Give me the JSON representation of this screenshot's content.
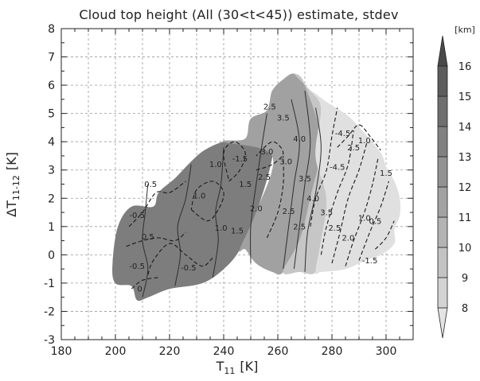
{
  "chart_data": {
    "type": "heatmap",
    "title": "Cloud top height (All (30<t<45)) estimate, stdev",
    "xlabel": "T",
    "xlabel_sub": "11",
    "xlabel_unit": "[K]",
    "ylabel": "ΔT",
    "ylabel_sub": "11-12",
    "ylabel_unit": "[K]",
    "xlim": [
      180,
      310
    ],
    "ylim": [
      -3,
      8
    ],
    "xticks": [
      180,
      200,
      220,
      240,
      260,
      280,
      300
    ],
    "yticks": [
      -3,
      -2,
      -1,
      0,
      1,
      2,
      3,
      4,
      5,
      6,
      7,
      8
    ],
    "grid": true,
    "colorbar": {
      "unit": "[km]",
      "levels": [
        8,
        9,
        10,
        11,
        12,
        13,
        14,
        15,
        16
      ],
      "colors": [
        "#e3e3e3",
        "#d3d3d3",
        "#c3c3c3",
        "#b3b3b3",
        "#a2a2a2",
        "#929292",
        "#818181",
        "#6f6f6f",
        "#5c5c5c",
        "#4a4a4a"
      ]
    },
    "fill_regions": [
      {
        "level": 14,
        "color": "#7d7d7d",
        "points": [
          [
            199,
            -0.3
          ],
          [
            201,
            1.0
          ],
          [
            206,
            1.7
          ],
          [
            214,
            1.7
          ],
          [
            216,
            2.2
          ],
          [
            222,
            2.7
          ],
          [
            228,
            3.3
          ],
          [
            233,
            3.7
          ],
          [
            240,
            4.0
          ],
          [
            248,
            4.1
          ],
          [
            250,
            4.8
          ],
          [
            256,
            5.1
          ],
          [
            258,
            5.8
          ],
          [
            260,
            5.6
          ],
          [
            258,
            3.5
          ],
          [
            252,
            1.5
          ],
          [
            246,
            0.2
          ],
          [
            240,
            -0.5
          ],
          [
            232,
            -1.0
          ],
          [
            220,
            -1.2
          ],
          [
            212,
            -1.5
          ],
          [
            208,
            -1.6
          ],
          [
            206,
            -1.1
          ],
          [
            200,
            -1.0
          ]
        ]
      },
      {
        "level": 12,
        "color": "#a1a1a1",
        "points": [
          [
            240,
            4.0
          ],
          [
            248,
            4.1
          ],
          [
            250,
            4.8
          ],
          [
            256,
            5.1
          ],
          [
            258,
            5.8
          ],
          [
            262,
            6.2
          ],
          [
            266,
            6.4
          ],
          [
            270,
            6.0
          ],
          [
            276,
            4.0
          ],
          [
            272,
            2.0
          ],
          [
            268,
            0.5
          ],
          [
            262,
            -0.6
          ],
          [
            258,
            -0.6
          ],
          [
            252,
            -0.3
          ],
          [
            248,
            0.2
          ],
          [
            246,
            0.2
          ],
          [
            252,
            1.5
          ],
          [
            258,
            3.5
          ]
        ]
      },
      {
        "level": 10,
        "color": "#c6c6c6",
        "points": [
          [
            266,
            6.4
          ],
          [
            272,
            5.8
          ],
          [
            276,
            5.2
          ],
          [
            274,
            3.5
          ],
          [
            278,
            2.0
          ],
          [
            276,
            0.5
          ],
          [
            274,
            -0.6
          ],
          [
            268,
            -0.6
          ],
          [
            262,
            -0.6
          ],
          [
            268,
            0.5
          ],
          [
            272,
            2.0
          ],
          [
            276,
            4.0
          ],
          [
            270,
            6.0
          ]
        ]
      },
      {
        "level": 8,
        "color": "#e0e0e0",
        "points": [
          [
            272,
            5.8
          ],
          [
            278,
            5.4
          ],
          [
            286,
            4.9
          ],
          [
            292,
            4.3
          ],
          [
            298,
            3.6
          ],
          [
            300,
            3.1
          ],
          [
            303,
            2.6
          ],
          [
            305,
            2.0
          ],
          [
            305,
            1.4
          ],
          [
            303,
            0.9
          ],
          [
            303,
            0.4
          ],
          [
            298,
            0.0
          ],
          [
            292,
            -0.2
          ],
          [
            285,
            -0.5
          ],
          [
            276,
            -0.6
          ],
          [
            274,
            -0.6
          ],
          [
            276,
            0.5
          ],
          [
            278,
            2.0
          ],
          [
            274,
            3.5
          ],
          [
            276,
            5.2
          ]
        ]
      }
    ],
    "contours_solid": [
      [
        [
          210,
          -1.5
        ],
        [
          212,
          -0.5
        ],
        [
          210,
          0.5
        ],
        [
          211,
          1.5
        ],
        [
          212,
          2.5
        ]
      ],
      [
        [
          222,
          -1.1
        ],
        [
          224,
          0.0
        ],
        [
          223,
          1.0
        ],
        [
          226,
          2.0
        ],
        [
          228,
          3.2
        ]
      ],
      [
        [
          236,
          -0.8
        ],
        [
          238,
          0.5
        ],
        [
          237,
          1.5
        ],
        [
          239,
          2.5
        ],
        [
          240,
          3.8
        ]
      ],
      [
        [
          250,
          -0.3
        ],
        [
          250,
          1.0
        ],
        [
          252,
          2.5
        ],
        [
          254,
          3.8
        ],
        [
          256,
          5.0
        ]
      ],
      [
        [
          262,
          -0.5
        ],
        [
          264,
          1.0
        ],
        [
          266,
          2.5
        ],
        [
          268,
          4.0
        ],
        [
          265,
          5.5
        ]
      ],
      [
        [
          266,
          -0.5
        ],
        [
          268,
          1.0
        ],
        [
          270,
          2.5
        ],
        [
          272,
          4.0
        ],
        [
          270,
          5.8
        ]
      ],
      [
        [
          270,
          -0.6
        ],
        [
          271,
          0.8
        ],
        [
          274,
          2.2
        ],
        [
          276,
          3.8
        ],
        [
          274,
          5.2
        ]
      ]
    ],
    "contours_dashed": [
      [
        [
          205,
          1.0
        ],
        [
          210,
          1.5
        ],
        [
          215,
          2.2
        ],
        [
          220,
          2.2
        ],
        [
          226,
          2.6
        ]
      ],
      [
        [
          204,
          0.3
        ],
        [
          210,
          0.5
        ],
        [
          216,
          0.6
        ],
        [
          222,
          0.5
        ],
        [
          226,
          0.8
        ]
      ],
      [
        [
          212,
          -0.7
        ],
        [
          214,
          -0.2
        ],
        [
          220,
          0.4
        ],
        [
          226,
          0.0
        ],
        [
          232,
          -0.4
        ],
        [
          236,
          -0.1
        ]
      ],
      [
        [
          206,
          -1.2
        ],
        [
          210,
          -0.9
        ],
        [
          216,
          -0.8
        ]
      ],
      [
        [
          228,
          1.6
        ],
        [
          234,
          1.2
        ],
        [
          238,
          1.6
        ],
        [
          240,
          2.2
        ],
        [
          236,
          2.6
        ],
        [
          230,
          2.3
        ],
        [
          228,
          1.6
        ]
      ],
      [
        [
          242,
          2.6
        ],
        [
          246,
          3.0
        ],
        [
          248,
          3.6
        ],
        [
          244,
          4.0
        ],
        [
          240,
          3.6
        ],
        [
          242,
          2.6
        ]
      ],
      [
        [
          252,
          3.0
        ],
        [
          258,
          3.2
        ],
        [
          262,
          3.6
        ],
        [
          258,
          4.0
        ],
        [
          252,
          3.5
        ]
      ],
      [
        [
          256,
          0.6
        ],
        [
          260,
          1.5
        ],
        [
          262,
          2.5
        ],
        [
          262,
          3.5
        ]
      ],
      [
        [
          272,
          1.0
        ],
        [
          274,
          2.0
        ],
        [
          278,
          3.0
        ],
        [
          280,
          4.2
        ],
        [
          282,
          5.2
        ]
      ],
      [
        [
          276,
          0.0
        ],
        [
          278,
          1.0
        ],
        [
          282,
          2.2
        ],
        [
          286,
          3.2
        ],
        [
          288,
          4.4
        ]
      ],
      [
        [
          280,
          -0.3
        ],
        [
          283,
          0.8
        ],
        [
          286,
          2.0
        ],
        [
          290,
          3.0
        ],
        [
          293,
          4.0
        ]
      ],
      [
        [
          285,
          -0.4
        ],
        [
          288,
          0.5
        ],
        [
          292,
          1.5
        ],
        [
          295,
          2.5
        ],
        [
          297,
          3.4
        ]
      ],
      [
        [
          290,
          -0.2
        ],
        [
          294,
          0.8
        ],
        [
          298,
          1.7
        ],
        [
          301,
          2.6
        ]
      ],
      [
        [
          282,
          3.8
        ],
        [
          286,
          4.2
        ],
        [
          290,
          4.6
        ],
        [
          294,
          4.2
        ],
        [
          298,
          3.7
        ]
      ],
      [
        [
          296,
          0.2
        ],
        [
          300,
          0.6
        ],
        [
          303,
          1.2
        ]
      ]
    ],
    "contour_labels": [
      {
        "x": 213,
        "y": 2.4,
        "text": "0.5"
      },
      {
        "x": 208,
        "y": 1.3,
        "text": "-0.5"
      },
      {
        "x": 212,
        "y": 0.55,
        "text": "0.5"
      },
      {
        "x": 208,
        "y": -0.5,
        "text": "-0.5"
      },
      {
        "x": 227,
        "y": -0.55,
        "text": "-0.5"
      },
      {
        "x": 237,
        "y": 3.1,
        "text": "1.0"
      },
      {
        "x": 231,
        "y": 2.0,
        "text": "1.0"
      },
      {
        "x": 239,
        "y": 0.85,
        "text": "1.0"
      },
      {
        "x": 245,
        "y": 0.75,
        "text": "1.5"
      },
      {
        "x": 248,
        "y": 2.4,
        "text": "1.5"
      },
      {
        "x": 246,
        "y": 3.3,
        "text": "-1.5"
      },
      {
        "x": 252,
        "y": 1.55,
        "text": "2.0"
      },
      {
        "x": 255,
        "y": 2.65,
        "text": "2.5"
      },
      {
        "x": 256,
        "y": 3.55,
        "text": "3.0"
      },
      {
        "x": 257,
        "y": 5.15,
        "text": "2.5"
      },
      {
        "x": 262,
        "y": 4.75,
        "text": "3.5"
      },
      {
        "x": 268,
        "y": 4.0,
        "text": "4.0"
      },
      {
        "x": 270,
        "y": 2.6,
        "text": "3.5"
      },
      {
        "x": 264,
        "y": 1.45,
        "text": "2.5"
      },
      {
        "x": 268,
        "y": 0.9,
        "text": "2.5"
      },
      {
        "x": 273,
        "y": 1.9,
        "text": "4.0"
      },
      {
        "x": 278,
        "y": 1.4,
        "text": "3.5"
      },
      {
        "x": 281,
        "y": 0.85,
        "text": "2.5"
      },
      {
        "x": 286,
        "y": 0.5,
        "text": "2.0"
      },
      {
        "x": 284,
        "y": 4.2,
        "text": "-4.5"
      },
      {
        "x": 282,
        "y": 3.0,
        "text": "-4.5"
      },
      {
        "x": 288,
        "y": 3.7,
        "text": "2.5"
      },
      {
        "x": 292,
        "y": 3.95,
        "text": "1.0"
      },
      {
        "x": 292,
        "y": 1.2,
        "text": "1.0"
      },
      {
        "x": 296,
        "y": 1.1,
        "text": "0.5"
      },
      {
        "x": 294,
        "y": -0.3,
        "text": "-1.5"
      },
      {
        "x": 300,
        "y": 2.8,
        "text": "1.5"
      },
      {
        "x": 263,
        "y": 3.2,
        "text": "3.0"
      },
      {
        "x": 209,
        "y": -1.3,
        "text": "0"
      }
    ]
  }
}
